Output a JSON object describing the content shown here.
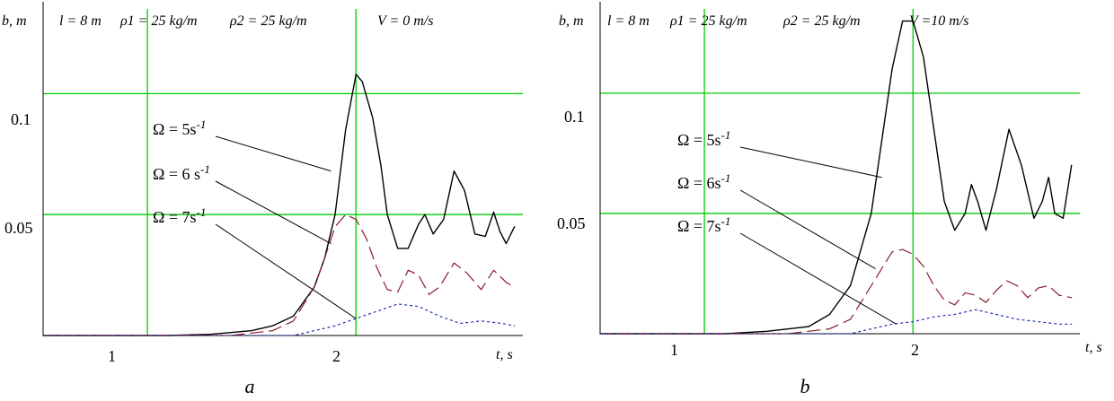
{
  "colors": {
    "grid": "#00cc00",
    "axis": "#000000",
    "omega5": "#000000",
    "omega6": "#8b1a2a",
    "omega7": "#1f2fa8"
  },
  "chart_data": [
    {
      "type": "line",
      "caption": "a",
      "params": {
        "length": "l = 8 m",
        "rho1": "ρ1 = 25 kg/m",
        "rho2": "ρ2 = 25 kg/m",
        "velocity": "V = 0 m/s"
      },
      "ylabel": "b, m",
      "xlabel": "t, s",
      "xlim": [
        0.5,
        2.8
      ],
      "ylim": [
        0,
        0.135
      ],
      "xticks": [
        "1",
        "2"
      ],
      "yticks": [
        "0.1",
        "0.05"
      ],
      "grid": true,
      "series": [
        {
          "name": "Ω = 5s-1",
          "style": "solid",
          "points": [
            [
              1.1,
              0.0
            ],
            [
              1.3,
              0.0005
            ],
            [
              1.5,
              0.002
            ],
            [
              1.6,
              0.004
            ],
            [
              1.7,
              0.008
            ],
            [
              1.8,
              0.02
            ],
            [
              1.85,
              0.032
            ],
            [
              1.9,
              0.05
            ],
            [
              1.95,
              0.085
            ],
            [
              2.0,
              0.108
            ],
            [
              2.03,
              0.105
            ],
            [
              2.08,
              0.09
            ],
            [
              2.12,
              0.07
            ],
            [
              2.15,
              0.05
            ],
            [
              2.2,
              0.036
            ],
            [
              2.25,
              0.036
            ],
            [
              2.3,
              0.046
            ],
            [
              2.33,
              0.05
            ],
            [
              2.37,
              0.042
            ],
            [
              2.42,
              0.048
            ],
            [
              2.47,
              0.068
            ],
            [
              2.52,
              0.06
            ],
            [
              2.57,
              0.042
            ],
            [
              2.62,
              0.041
            ],
            [
              2.66,
              0.051
            ],
            [
              2.69,
              0.043
            ],
            [
              2.72,
              0.038
            ],
            [
              2.76,
              0.045
            ]
          ]
        },
        {
          "name": "Ω = 6 s-1",
          "style": "dashed",
          "points": [
            [
              1.4,
              0.0
            ],
            [
              1.6,
              0.002
            ],
            [
              1.7,
              0.006
            ],
            [
              1.8,
              0.02
            ],
            [
              1.85,
              0.032
            ],
            [
              1.9,
              0.045
            ],
            [
              1.95,
              0.05
            ],
            [
              2.0,
              0.048
            ],
            [
              2.05,
              0.04
            ],
            [
              2.1,
              0.028
            ],
            [
              2.15,
              0.019
            ],
            [
              2.2,
              0.018
            ],
            [
              2.25,
              0.027
            ],
            [
              2.3,
              0.025
            ],
            [
              2.35,
              0.017
            ],
            [
              2.4,
              0.02
            ],
            [
              2.47,
              0.03
            ],
            [
              2.53,
              0.026
            ],
            [
              2.6,
              0.019
            ],
            [
              2.66,
              0.027
            ],
            [
              2.72,
              0.022
            ],
            [
              2.76,
              0.02
            ]
          ]
        },
        {
          "name": "Ω = 7s-1",
          "style": "dotted",
          "points": [
            [
              1.7,
              0.0
            ],
            [
              1.8,
              0.002
            ],
            [
              1.9,
              0.004
            ],
            [
              2.0,
              0.007
            ],
            [
              2.1,
              0.01
            ],
            [
              2.2,
              0.013
            ],
            [
              2.3,
              0.012
            ],
            [
              2.4,
              0.008
            ],
            [
              2.5,
              0.005
            ],
            [
              2.6,
              0.006
            ],
            [
              2.7,
              0.005
            ],
            [
              2.76,
              0.004
            ]
          ]
        }
      ],
      "annotations": [
        {
          "text": "Ω = 5s",
          "sup": "-1",
          "target": [
            1.88,
            0.068
          ]
        },
        {
          "text": "Ω = 6 s",
          "sup": "-1",
          "target": [
            1.88,
            0.038
          ]
        },
        {
          "text": "Ω = 7s",
          "sup": "-1",
          "target": [
            2.0,
            0.007
          ]
        }
      ]
    },
    {
      "type": "line",
      "caption": "b",
      "params": {
        "length": "l = 8 m",
        "rho1": "ρ1 = 25 kg/m",
        "rho2": "ρ2 = 25 kg/m",
        "velocity": "V =10 m/s"
      },
      "ylabel": "b, m",
      "xlabel": "t, s",
      "xlim": [
        0.5,
        2.8
      ],
      "ylim": [
        0,
        0.135
      ],
      "xticks": [
        "1",
        "2"
      ],
      "yticks": [
        "0.1",
        "0.05"
      ],
      "grid": true,
      "series": [
        {
          "name": "Ω = 5s-1",
          "style": "solid",
          "points": [
            [
              1.1,
              0.0
            ],
            [
              1.3,
              0.001
            ],
            [
              1.5,
              0.003
            ],
            [
              1.6,
              0.008
            ],
            [
              1.7,
              0.02
            ],
            [
              1.8,
              0.05
            ],
            [
              1.85,
              0.08
            ],
            [
              1.9,
              0.11
            ],
            [
              1.95,
              0.13
            ],
            [
              2.0,
              0.13
            ],
            [
              2.05,
              0.115
            ],
            [
              2.1,
              0.085
            ],
            [
              2.15,
              0.055
            ],
            [
              2.2,
              0.043
            ],
            [
              2.25,
              0.05
            ],
            [
              2.28,
              0.062
            ],
            [
              2.31,
              0.055
            ],
            [
              2.35,
              0.043
            ],
            [
              2.4,
              0.06
            ],
            [
              2.46,
              0.085
            ],
            [
              2.52,
              0.07
            ],
            [
              2.58,
              0.048
            ],
            [
              2.62,
              0.055
            ],
            [
              2.65,
              0.065
            ],
            [
              2.68,
              0.05
            ],
            [
              2.72,
              0.048
            ],
            [
              2.76,
              0.07
            ]
          ]
        },
        {
          "name": "Ω = 6s-1",
          "style": "dashed",
          "points": [
            [
              1.4,
              0.0
            ],
            [
              1.6,
              0.002
            ],
            [
              1.7,
              0.006
            ],
            [
              1.8,
              0.02
            ],
            [
              1.85,
              0.027
            ],
            [
              1.9,
              0.034
            ],
            [
              1.95,
              0.035
            ],
            [
              2.0,
              0.033
            ],
            [
              2.05,
              0.028
            ],
            [
              2.1,
              0.02
            ],
            [
              2.15,
              0.014
            ],
            [
              2.2,
              0.012
            ],
            [
              2.25,
              0.017
            ],
            [
              2.3,
              0.016
            ],
            [
              2.35,
              0.013
            ],
            [
              2.4,
              0.018
            ],
            [
              2.45,
              0.022
            ],
            [
              2.5,
              0.02
            ],
            [
              2.55,
              0.015
            ],
            [
              2.6,
              0.019
            ],
            [
              2.65,
              0.02
            ],
            [
              2.7,
              0.016
            ],
            [
              2.76,
              0.015
            ]
          ]
        },
        {
          "name": "Ω = 7s-1",
          "style": "dotted",
          "points": [
            [
              1.7,
              0.0
            ],
            [
              1.8,
              0.002
            ],
            [
              1.9,
              0.004
            ],
            [
              2.0,
              0.005
            ],
            [
              2.1,
              0.007
            ],
            [
              2.2,
              0.008
            ],
            [
              2.3,
              0.01
            ],
            [
              2.4,
              0.008
            ],
            [
              2.5,
              0.006
            ],
            [
              2.6,
              0.005
            ],
            [
              2.7,
              0.004
            ],
            [
              2.76,
              0.004
            ]
          ]
        }
      ],
      "annotations": [
        {
          "text": "Ω = 5s",
          "sup": "-1",
          "target": [
            1.85,
            0.065
          ]
        },
        {
          "text": "Ω = 6s",
          "sup": "-1",
          "target": [
            1.82,
            0.027
          ]
        },
        {
          "text": "Ω = 7s",
          "sup": "-1",
          "target": [
            1.92,
            0.004
          ]
        }
      ]
    }
  ]
}
